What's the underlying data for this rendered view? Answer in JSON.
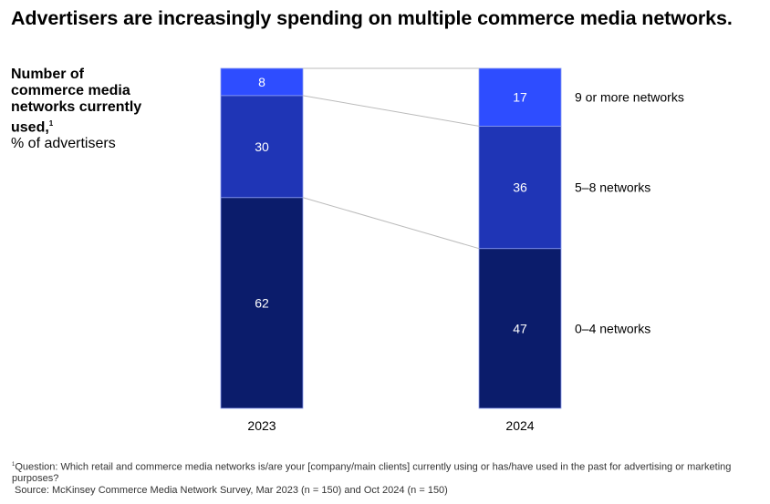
{
  "chart_data": {
    "type": "bar",
    "stacked": true,
    "title": "Advertisers are increasingly spending on multiple commerce media networks.",
    "ylabel_bold": "Number of commerce media networks currently used,",
    "ylabel_sup": "1",
    "ylabel_unit": "% of advertisers",
    "categories": [
      "2023",
      "2024"
    ],
    "series": [
      {
        "name": "0–4 networks",
        "values": [
          62,
          47
        ],
        "color": "#0b1c6b"
      },
      {
        "name": "5–8 networks",
        "values": [
          30,
          36
        ],
        "color": "#1f35b6"
      },
      {
        "name": "9 or more networks",
        "values": [
          8,
          17
        ],
        "color": "#2e4dff"
      }
    ],
    "ylim": [
      0,
      100
    ],
    "grid": false,
    "legend": "right"
  },
  "footnote": {
    "sup": "1",
    "question": "Question: Which retail and commerce media networks is/are your [company/main clients] currently using or has/have used in the past for advertising or marketing purposes?",
    "source": "Source: McKinsey Commerce Media Network Survey, Mar 2023 (n = 150) and Oct 2024 (n = 150)"
  }
}
